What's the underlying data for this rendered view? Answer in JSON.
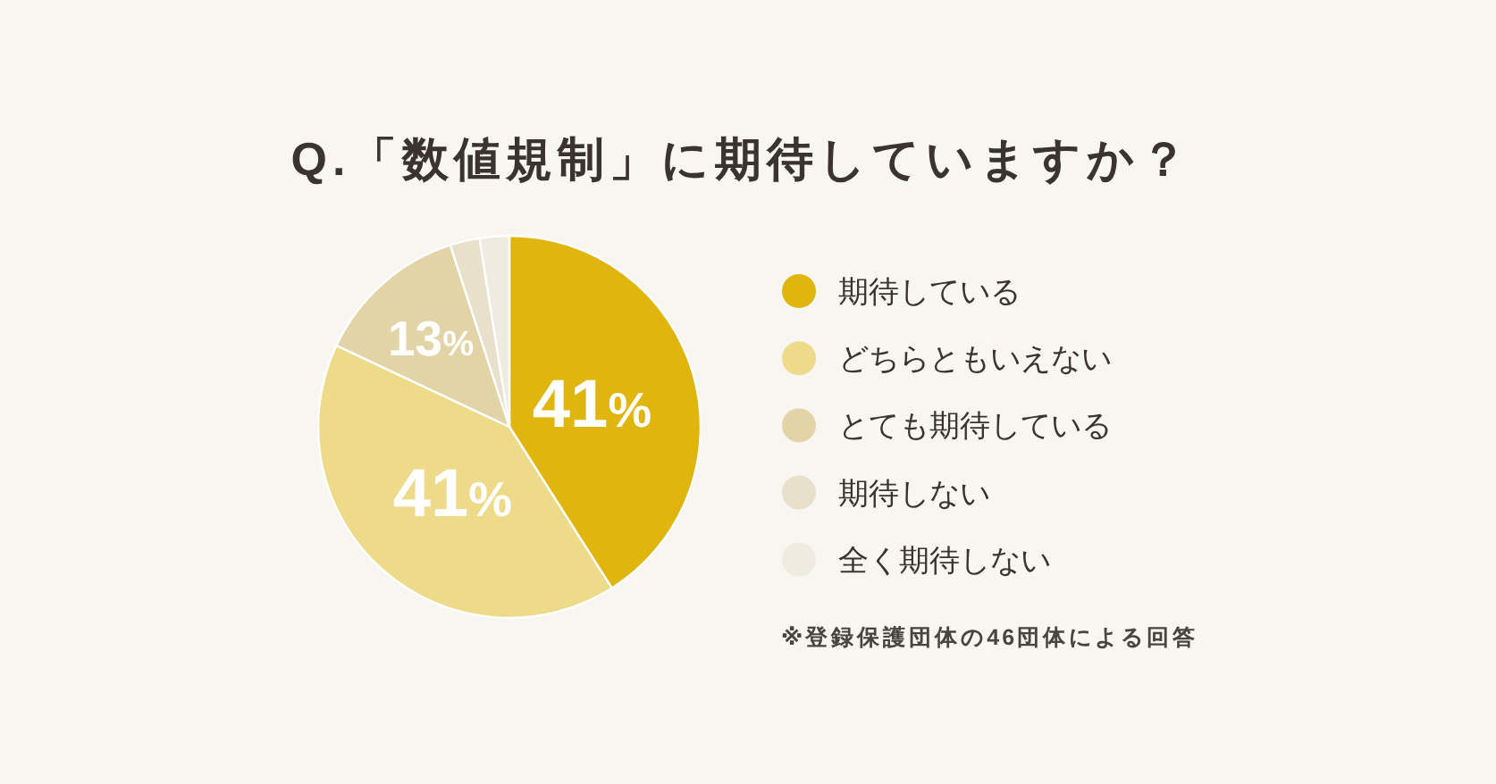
{
  "chart_data": {
    "type": "pie",
    "title": "Q.「数値規制」に期待していますか？",
    "categories": [
      "期待している",
      "どちらともいえない",
      "とても期待している",
      "期待しない",
      "全く期待しない"
    ],
    "values": [
      41,
      41,
      13,
      2.5,
      2.5
    ],
    "colors": [
      "#e0b50e",
      "#eedb8a",
      "#e2d4a6",
      "#e8e0cb",
      "#efebe0"
    ],
    "value_labels": [
      "41%",
      "41%",
      "13%",
      null,
      null
    ],
    "legend": "right",
    "annotations": [
      "※登録保護団体の46団体による回答"
    ]
  }
}
